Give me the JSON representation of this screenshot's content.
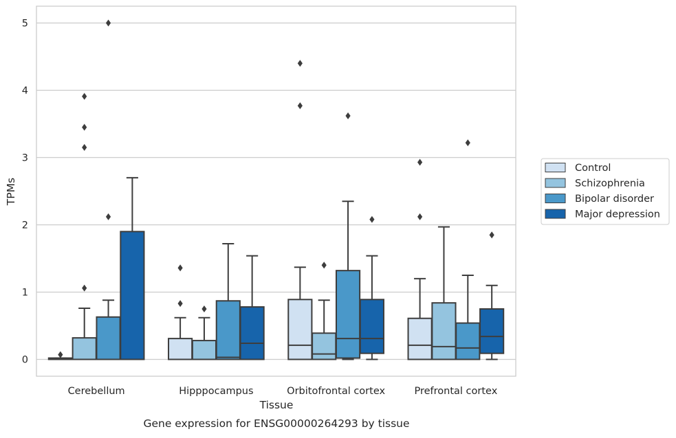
{
  "chart_data": {
    "type": "box",
    "title": "",
    "caption": "Gene expression for ENSG00000264293 by tissue",
    "xlabel": "Tissue",
    "ylabel": "TPMs",
    "ylim": [
      -0.25,
      5.25
    ],
    "yticks": [
      "0",
      "1",
      "2",
      "3",
      "4",
      "5"
    ],
    "grid": true,
    "legend_position": "right",
    "categories": [
      "Cerebellum",
      "Hipppocampus",
      "Orbitofrontal cortex",
      "Prefrontal cortex"
    ],
    "series": [
      {
        "name": "Control",
        "color": "#d0e1f2",
        "boxes": [
          {
            "q1": 0,
            "median": 0,
            "q3": 0.02,
            "whisker_low": 0,
            "whisker_high": 0.02,
            "outliers": [
              0.07
            ]
          },
          {
            "q1": 0,
            "median": 0,
            "q3": 0.31,
            "whisker_low": 0,
            "whisker_high": 0.62,
            "outliers": [
              0.83,
              1.36
            ]
          },
          {
            "q1": 0,
            "median": 0.21,
            "q3": 0.89,
            "whisker_low": 0,
            "whisker_high": 1.37,
            "outliers": [
              3.77,
              4.4
            ]
          },
          {
            "q1": 0,
            "median": 0.21,
            "q3": 0.61,
            "whisker_low": 0,
            "whisker_high": 1.2,
            "outliers": [
              2.12,
              2.93
            ]
          }
        ]
      },
      {
        "name": "Schizophrenia",
        "color": "#94c4df",
        "boxes": [
          {
            "q1": 0,
            "median": 0,
            "q3": 0.32,
            "whisker_low": 0,
            "whisker_high": 0.76,
            "outliers": [
              1.06,
              3.15,
              3.45,
              3.91
            ]
          },
          {
            "q1": 0,
            "median": 0,
            "q3": 0.28,
            "whisker_low": 0,
            "whisker_high": 0.62,
            "outliers": [
              0.75
            ]
          },
          {
            "q1": 0,
            "median": 0.08,
            "q3": 0.39,
            "whisker_low": 0,
            "whisker_high": 0.88,
            "outliers": [
              1.4
            ]
          },
          {
            "q1": 0,
            "median": 0.19,
            "q3": 0.84,
            "whisker_low": 0,
            "whisker_high": 1.97,
            "outliers": []
          }
        ]
      },
      {
        "name": "Bipolar disorder",
        "color": "#4a98c9",
        "boxes": [
          {
            "q1": 0,
            "median": 0,
            "q3": 0.63,
            "whisker_low": 0,
            "whisker_high": 0.88,
            "outliers": [
              2.12,
              5.0
            ]
          },
          {
            "q1": 0,
            "median": 0.03,
            "q3": 0.87,
            "whisker_low": 0,
            "whisker_high": 1.72,
            "outliers": []
          },
          {
            "q1": 0.02,
            "median": 0.31,
            "q3": 1.32,
            "whisker_low": 0,
            "whisker_high": 2.35,
            "outliers": [
              3.62
            ]
          },
          {
            "q1": 0,
            "median": 0.17,
            "q3": 0.54,
            "whisker_low": 0,
            "whisker_high": 1.25,
            "outliers": [
              3.22
            ]
          }
        ]
      },
      {
        "name": "Major depression",
        "color": "#1764ab",
        "boxes": [
          {
            "q1": 0,
            "median": 0,
            "q3": 1.9,
            "whisker_low": 0,
            "whisker_high": 2.7,
            "outliers": []
          },
          {
            "q1": 0,
            "median": 0.24,
            "q3": 0.78,
            "whisker_low": 0,
            "whisker_high": 1.54,
            "outliers": []
          },
          {
            "q1": 0.09,
            "median": 0.31,
            "q3": 0.89,
            "whisker_low": 0,
            "whisker_high": 1.54,
            "outliers": [
              2.08
            ]
          },
          {
            "q1": 0.09,
            "median": 0.34,
            "q3": 0.75,
            "whisker_low": 0,
            "whisker_high": 1.1,
            "outliers": [
              1.85
            ]
          }
        ]
      }
    ]
  }
}
